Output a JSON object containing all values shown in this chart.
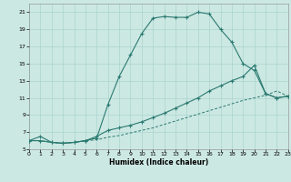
{
  "xlabel": "Humidex (Indice chaleur)",
  "background_color": "#cce8e3",
  "grid_color": "#aad4ce",
  "line_color": "#2a7a70",
  "xlim": [
    0,
    23
  ],
  "ylim": [
    5,
    22
  ],
  "xticks": [
    0,
    1,
    2,
    3,
    4,
    5,
    6,
    7,
    8,
    9,
    10,
    11,
    12,
    13,
    14,
    15,
    16,
    17,
    18,
    19,
    20,
    21,
    22,
    23
  ],
  "yticks": [
    5,
    7,
    9,
    11,
    13,
    15,
    17,
    19,
    21
  ],
  "curve1_x": [
    0,
    1,
    2,
    3,
    4,
    5,
    6,
    7,
    8,
    9,
    10,
    11,
    12,
    13,
    14,
    15,
    16,
    17,
    18,
    19,
    20,
    21,
    22,
    23
  ],
  "curve1_y": [
    6.0,
    6.5,
    5.8,
    5.7,
    5.8,
    6.0,
    6.3,
    10.2,
    13.5,
    16.0,
    18.5,
    20.3,
    20.5,
    20.4,
    20.4,
    21.0,
    20.8,
    19.0,
    17.5,
    15.0,
    14.2,
    11.5,
    11.0,
    11.2
  ],
  "curve2_x": [
    0,
    1,
    2,
    3,
    4,
    5,
    6,
    7,
    8,
    9,
    10,
    11,
    12,
    13,
    14,
    15,
    16,
    17,
    18,
    19,
    20,
    21,
    22,
    23
  ],
  "curve2_y": [
    6.0,
    6.0,
    5.8,
    5.7,
    5.8,
    6.0,
    6.5,
    7.2,
    7.5,
    7.8,
    8.2,
    8.7,
    9.2,
    9.8,
    10.4,
    11.0,
    11.8,
    12.4,
    13.0,
    13.5,
    14.8,
    11.5,
    11.0,
    11.2
  ],
  "curve3_x": [
    0,
    1,
    2,
    3,
    4,
    5,
    6,
    7,
    8,
    9,
    10,
    11,
    12,
    13,
    14,
    15,
    16,
    17,
    18,
    19,
    20,
    21,
    22,
    23
  ],
  "curve3_y": [
    6.0,
    6.0,
    5.8,
    5.7,
    5.8,
    6.0,
    6.1,
    6.4,
    6.6,
    6.9,
    7.2,
    7.5,
    7.9,
    8.3,
    8.7,
    9.1,
    9.5,
    9.9,
    10.3,
    10.7,
    11.0,
    11.3,
    11.8,
    11.2
  ]
}
